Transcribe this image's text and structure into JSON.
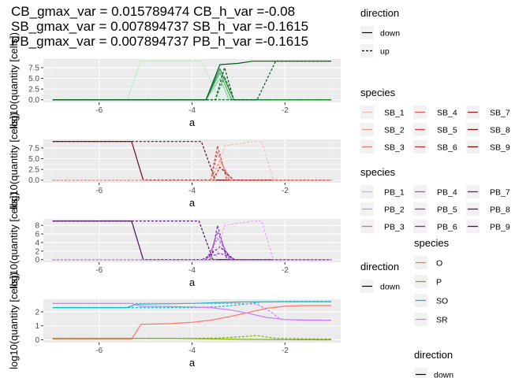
{
  "title_lines": [
    "CB_gmax_var = 0.015789474 CB_h_var =-0.08",
    "SB_gmax_var = 0.007894737 SB_h_var =-0.1615",
    "PB_gmax_var = 0.007894737 PB_h_var =-0.1615"
  ],
  "chart_data": [
    {
      "type": "line",
      "panel": "CB",
      "xlabel": "a",
      "ylabel": "log10(quantity [cells])",
      "xlim": [
        -7.2,
        -0.8
      ],
      "ylim": [
        -0.6,
        9.5
      ],
      "x_ticks": [
        -6,
        -4,
        -2
      ],
      "x_tick_labels": [
        "-6",
        "-4",
        "-2"
      ],
      "y_ticks": [
        0,
        2.5,
        5,
        7.5
      ],
      "y_tick_labels": [
        "0.0",
        "2.5",
        "5.0",
        "7.5"
      ],
      "grid": true,
      "series": [
        {
          "color": "#b9f0c6",
          "dash": "solid",
          "x": [
            -7,
            -5.4,
            -5.1,
            -3.8,
            -3.4,
            -3.0,
            -1
          ],
          "y": [
            0,
            0,
            9,
            9,
            0,
            0,
            0
          ]
        },
        {
          "color": "#7fd794",
          "dash": "solid",
          "x": [
            -7,
            -3.7,
            -3.4,
            -3.2,
            -1
          ],
          "y": [
            0,
            0,
            5.0,
            0,
            0
          ]
        },
        {
          "color": "#41b35f",
          "dash": "solid",
          "x": [
            -7,
            -3.7,
            -3.4,
            -3.15,
            -1
          ],
          "y": [
            0,
            0,
            6.3,
            0,
            0
          ]
        },
        {
          "color": "#1d8a3d",
          "dash": "solid",
          "x": [
            -7,
            -3.7,
            -3.4,
            -3.1,
            -1
          ],
          "y": [
            0,
            0,
            7.2,
            0,
            0
          ]
        },
        {
          "color": "#005a1e",
          "dash": "solid",
          "x": [
            -7,
            -3.7,
            -3.4,
            -3.0,
            -2.7,
            -1
          ],
          "y": [
            0,
            0,
            8.2,
            8.5,
            9,
            9
          ]
        },
        {
          "color": "#005a1e",
          "dash": "dashed",
          "x": [
            -7,
            -3.5,
            -3.3,
            -3.1,
            -1
          ],
          "y": [
            0,
            0,
            7.5,
            0,
            0
          ]
        },
        {
          "color": "#1d8a3d",
          "dash": "dashed",
          "x": [
            -7,
            -3.5,
            -3.3,
            -3.1,
            -1
          ],
          "y": [
            0,
            0,
            5.5,
            0,
            0
          ]
        },
        {
          "color": "#005a1e",
          "dash": "dashed",
          "x": [
            -7,
            -2.6,
            -2.2,
            -1
          ],
          "y": [
            0,
            0,
            9,
            9
          ]
        }
      ]
    },
    {
      "type": "line",
      "panel": "SB",
      "xlabel": "a",
      "ylabel": "log10(quantity [cells])",
      "xlim": [
        -7.2,
        -0.8
      ],
      "ylim": [
        -0.6,
        9.5
      ],
      "x_ticks": [
        -6,
        -4,
        -2
      ],
      "x_tick_labels": [
        "-6",
        "-4",
        "-2"
      ],
      "y_ticks": [
        0,
        2.5,
        5,
        7.5
      ],
      "y_tick_labels": [
        "0.0",
        "2.5",
        "5.0",
        "7.5"
      ],
      "grid": true,
      "series": [
        {
          "color": "#6e0a0a",
          "dash": "solid",
          "x": [
            -7,
            -5.3,
            -5.05,
            -1
          ],
          "y": [
            9,
            9,
            0,
            0
          ]
        },
        {
          "color": "#6e0a0a",
          "dash": "dashed",
          "x": [
            -7,
            -3.8,
            -3.5,
            -3.25,
            -1
          ],
          "y": [
            9,
            9,
            0,
            0,
            0
          ]
        },
        {
          "color": "#c9413d",
          "dash": "dashed",
          "x": [
            -7,
            -3.6,
            -3.45,
            -3.25,
            -1
          ],
          "y": [
            0,
            0,
            8.0,
            0,
            0
          ]
        },
        {
          "color": "#d9685f",
          "dash": "dashed",
          "x": [
            -7,
            -3.6,
            -3.45,
            -3.2,
            -1
          ],
          "y": [
            0,
            0,
            6.4,
            0,
            0
          ]
        },
        {
          "color": "#e68a7e",
          "dash": "dashed",
          "x": [
            -7,
            -3.6,
            -3.4,
            -3.15,
            -1
          ],
          "y": [
            0,
            0,
            4.5,
            0,
            0
          ]
        },
        {
          "color": "#a81e1e",
          "dash": "dashed",
          "x": [
            -7,
            -3.55,
            -3.4,
            -3.1,
            -1
          ],
          "y": [
            0,
            0,
            3.0,
            0,
            0
          ]
        },
        {
          "color": "#f4bdb3",
          "dash": "dashed",
          "x": [
            -7,
            -3.5,
            -3.3,
            -2.7,
            -2.5,
            -2.25,
            -1
          ],
          "y": [
            0,
            0,
            8.0,
            9,
            9,
            0,
            0
          ]
        }
      ]
    },
    {
      "type": "line",
      "panel": "PB",
      "xlabel": "a",
      "ylabel": "log10(quantity [cells])",
      "xlim": [
        -7.2,
        -0.8
      ],
      "ylim": [
        -0.6,
        9.5
      ],
      "x_ticks": [
        -6,
        -4,
        -2
      ],
      "x_tick_labels": [
        "-6",
        "-4",
        "-2"
      ],
      "y_ticks": [
        0,
        2,
        4,
        6,
        8
      ],
      "y_tick_labels": [
        "0",
        "2",
        "4",
        "6",
        "8"
      ],
      "grid": true,
      "series": [
        {
          "color": "#4a0a5e",
          "dash": "solid",
          "x": [
            -7,
            -5.3,
            -5.05,
            -1
          ],
          "y": [
            9,
            9,
            0,
            0
          ]
        },
        {
          "color": "#4a0a5e",
          "dash": "dashed",
          "x": [
            -7,
            -3.85,
            -3.55,
            -3.25,
            -1
          ],
          "y": [
            9,
            9,
            0,
            0,
            0
          ]
        },
        {
          "color": "#7b2aa8",
          "dash": "dashed",
          "x": [
            -7,
            -3.6,
            -3.45,
            -3.25,
            -1
          ],
          "y": [
            0,
            0,
            8.0,
            0,
            0
          ]
        },
        {
          "color": "#9b3fc6",
          "dash": "dashed",
          "x": [
            -7,
            -3.65,
            -3.45,
            -3.2,
            -1
          ],
          "y": [
            0,
            0,
            6.5,
            0,
            0
          ]
        },
        {
          "color": "#b565d8",
          "dash": "dashed",
          "x": [
            -7,
            -3.7,
            -3.45,
            -3.15,
            -1
          ],
          "y": [
            0,
            0,
            5.0,
            0,
            0
          ]
        },
        {
          "color": "#5c1480",
          "dash": "dashed",
          "x": [
            -7,
            -3.75,
            -3.4,
            -3.1,
            -1
          ],
          "y": [
            0,
            0,
            3.0,
            0,
            0
          ]
        },
        {
          "color": "#8a2fbf",
          "dash": "dashed",
          "x": [
            -7,
            -3.8,
            -3.4,
            -3.05,
            -1
          ],
          "y": [
            0,
            0,
            1.5,
            0,
            0
          ]
        },
        {
          "color": "#e2a8ef",
          "dash": "dashed",
          "x": [
            -7,
            -3.5,
            -3.3,
            -2.7,
            -2.5,
            -2.25,
            -1
          ],
          "y": [
            0,
            0,
            8.0,
            9,
            9,
            0,
            0
          ]
        }
      ]
    },
    {
      "type": "line",
      "panel": "nutrients",
      "xlabel": "a",
      "ylabel": "log10(quantity [cells])",
      "xlim": [
        -7.2,
        -0.8
      ],
      "ylim": [
        -0.2,
        2.9
      ],
      "x_ticks": [
        -6,
        -4,
        -2
      ],
      "x_tick_labels": [
        "-6",
        "-4",
        "-2"
      ],
      "y_ticks": [
        0,
        1,
        2
      ],
      "y_tick_labels": [
        "0",
        "1",
        "2"
      ],
      "grid": true,
      "series": [
        {
          "color": "#F8766D",
          "dash": "solid",
          "x": [
            -7,
            -5.3,
            -5.1,
            -4.5,
            -4.0,
            -3.6,
            -3.2,
            -2.8,
            -2.4,
            -2.0,
            -1.6,
            -1
          ],
          "y": [
            0.05,
            0.05,
            1.1,
            1.15,
            1.25,
            1.4,
            1.65,
            1.95,
            2.25,
            2.4,
            2.45,
            2.45
          ]
        },
        {
          "color": "#7CAE00",
          "dash": "solid",
          "x": [
            -7,
            -4.5,
            -4.0,
            -3.0,
            -2.0,
            -1
          ],
          "y": [
            0.1,
            0.1,
            0.08,
            0.03,
            0.01,
            0.0
          ]
        },
        {
          "color": "#7CAE00",
          "dash": "dashed",
          "x": [
            -7,
            -4.0,
            -3.5,
            -3.0,
            -2.6,
            -2.2,
            -1
          ],
          "y": [
            0.1,
            0.1,
            0.12,
            0.2,
            0.3,
            0.1,
            0.05
          ]
        },
        {
          "color": "#00BFC4",
          "dash": "solid",
          "x": [
            -7,
            -5.4,
            -5.2,
            -4.5,
            -4.0,
            -3.5,
            -3.0,
            -2.5,
            -2.0,
            -1
          ],
          "y": [
            2.3,
            2.3,
            2.55,
            2.58,
            2.6,
            2.65,
            2.7,
            2.72,
            2.72,
            2.72
          ]
        },
        {
          "color": "#00BFC4",
          "dash": "dashed",
          "x": [
            -7,
            -4.0,
            -3.5,
            -3.0,
            -2.5,
            -2.0,
            -1
          ],
          "y": [
            2.3,
            2.3,
            2.35,
            2.5,
            2.7,
            2.75,
            2.75
          ]
        },
        {
          "color": "#C77CFF",
          "dash": "solid",
          "x": [
            -7,
            -5.3,
            -5.1,
            -4.5,
            -4.0,
            -3.6,
            -3.2,
            -2.8,
            -2.4,
            -2.0,
            -1.6,
            -1
          ],
          "y": [
            2.6,
            2.6,
            2.4,
            2.38,
            2.35,
            2.3,
            2.15,
            1.9,
            1.6,
            1.45,
            1.4,
            1.4
          ]
        },
        {
          "color": "#C77CFF",
          "dash": "dashed",
          "x": [
            -7,
            -3.0,
            -2.6,
            -2.3,
            -2.1,
            -1
          ],
          "y": [
            2.6,
            2.6,
            2.55,
            2.0,
            1.45,
            1.4
          ]
        }
      ]
    }
  ],
  "legends": {
    "direction_1": {
      "title": "direction",
      "items": [
        {
          "label": "down",
          "dash": "solid"
        },
        {
          "label": "up",
          "dash": "dashed"
        }
      ]
    },
    "species_sb": {
      "title": "species",
      "items": [
        {
          "label": "SB_1",
          "color": "#f4bdb3"
        },
        {
          "label": "SB_2",
          "color": "#e89d90"
        },
        {
          "label": "SB_3",
          "color": "#dc7c72"
        },
        {
          "label": "SB_4",
          "color": "#d45f55"
        },
        {
          "label": "SB_5",
          "color": "#c9413d"
        },
        {
          "label": "SB_6",
          "color": "#b82d2d"
        },
        {
          "label": "SB_7",
          "color": "#a01e1e"
        },
        {
          "label": "SB_8",
          "color": "#861212"
        },
        {
          "label": "SB_9",
          "color": "#6e0a0a"
        }
      ]
    },
    "species_pb": {
      "title": "species",
      "items": [
        {
          "label": "PB_1",
          "color": "#e2a8ef"
        },
        {
          "label": "PB_2",
          "color": "#d18ae6"
        },
        {
          "label": "PB_3",
          "color": "#bf6bdb"
        },
        {
          "label": "PB_4",
          "color": "#a94fcc"
        },
        {
          "label": "PB_5",
          "color": "#9438bb"
        },
        {
          "label": "PB_6",
          "color": "#7f26a8"
        },
        {
          "label": "PB_7",
          "color": "#6a1893"
        },
        {
          "label": "PB_8",
          "color": "#580f7d"
        },
        {
          "label": "PB_9",
          "color": "#4a0a5e"
        }
      ]
    },
    "direction_2": {
      "title": "direction",
      "items": [
        {
          "label": "down",
          "dash": "solid"
        }
      ]
    },
    "species_nutrients": {
      "title": "species",
      "items": [
        {
          "label": "O",
          "color": "#F8766D"
        },
        {
          "label": "P",
          "color": "#7CAE00"
        },
        {
          "label": "SO",
          "color": "#00BFC4"
        },
        {
          "label": "SR",
          "color": "#C77CFF"
        }
      ]
    },
    "direction_3": {
      "title": "direction",
      "items": [
        {
          "label": "down",
          "dash": "solid"
        }
      ]
    }
  }
}
